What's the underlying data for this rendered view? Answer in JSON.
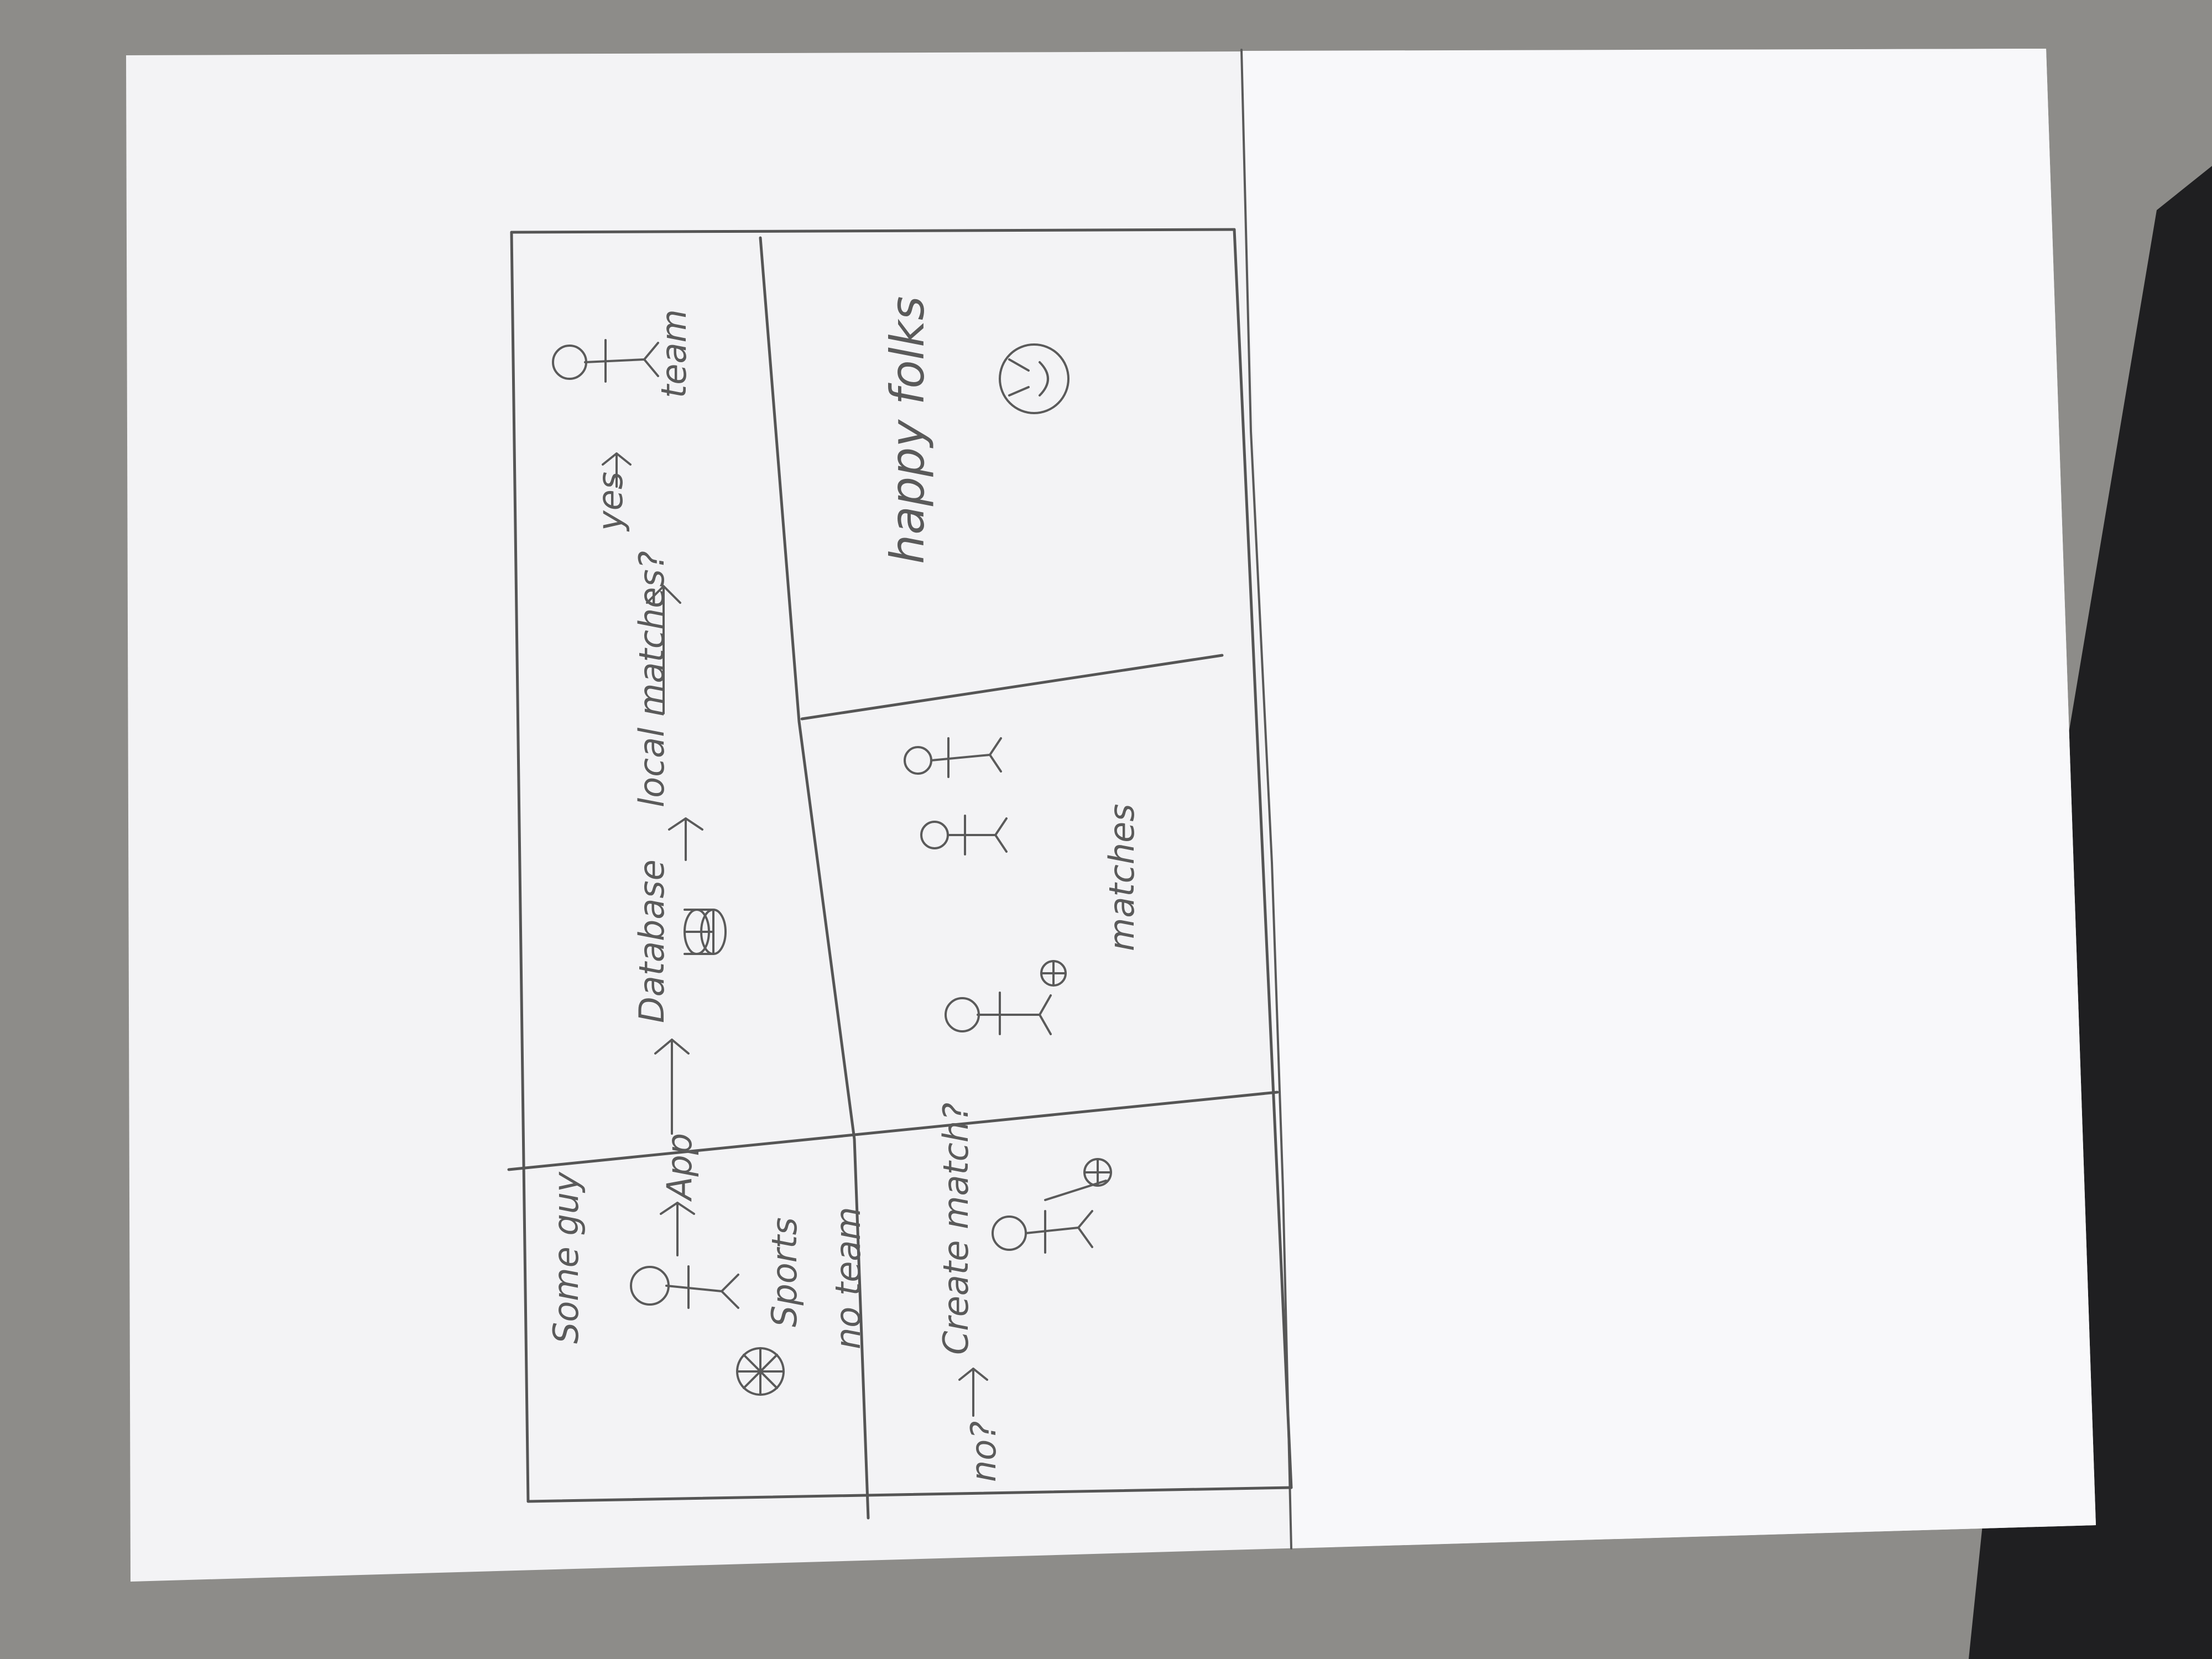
{
  "storyboard": {
    "panels": [
      {
        "id": "panel-1",
        "texts": [
          "Some guy",
          "App",
          "Sports",
          "no team"
        ]
      },
      {
        "id": "panel-2",
        "texts": [
          "Database",
          "local matches?"
        ]
      },
      {
        "id": "panel-3",
        "texts": [
          "yes",
          "team"
        ]
      },
      {
        "id": "panel-4",
        "texts": [
          "no?",
          "Create match?"
        ]
      },
      {
        "id": "panel-5",
        "texts": [
          "matches"
        ]
      },
      {
        "id": "panel-6",
        "texts": [
          "happy folks"
        ]
      }
    ]
  },
  "colors": {
    "table": "#8d8c89",
    "paper": "#f3f3f5",
    "pencil": "#5a5a5a",
    "dark_corner": "#1f1f21"
  }
}
